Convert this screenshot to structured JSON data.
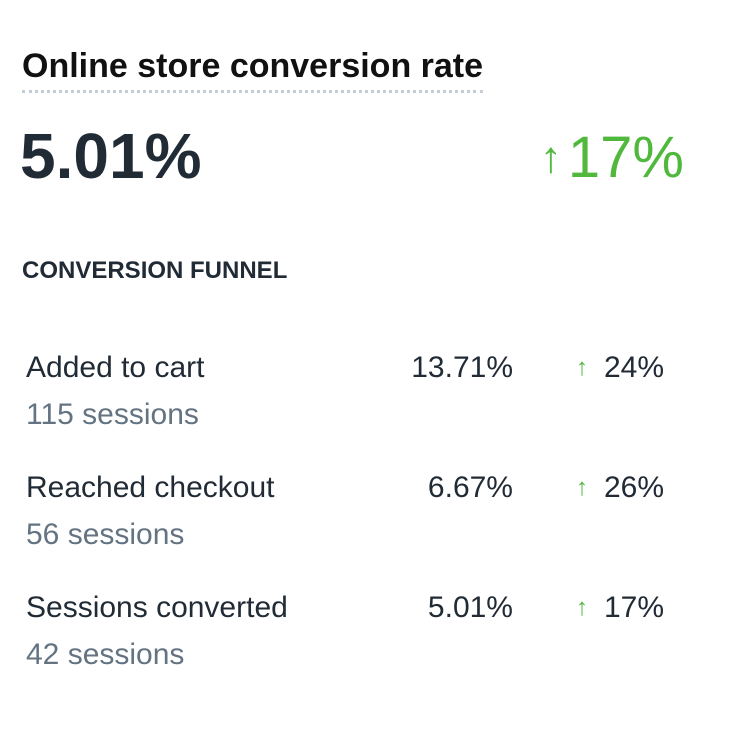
{
  "title": "Online store conversion rate",
  "value": "5.01%",
  "change": {
    "icon": "arrow-up-icon",
    "text": "17%",
    "color": "#50b83c"
  },
  "funnel": {
    "heading": "CONVERSION FUNNEL",
    "rows": [
      {
        "label": "Added to cart",
        "sessions": "115 sessions",
        "value": "13.71%",
        "change": "24%"
      },
      {
        "label": "Reached checkout",
        "sessions": "56 sessions",
        "value": "6.67%",
        "change": "26%"
      },
      {
        "label": "Sessions converted",
        "sessions": "42 sessions",
        "value": "5.01%",
        "change": "17%"
      }
    ]
  }
}
